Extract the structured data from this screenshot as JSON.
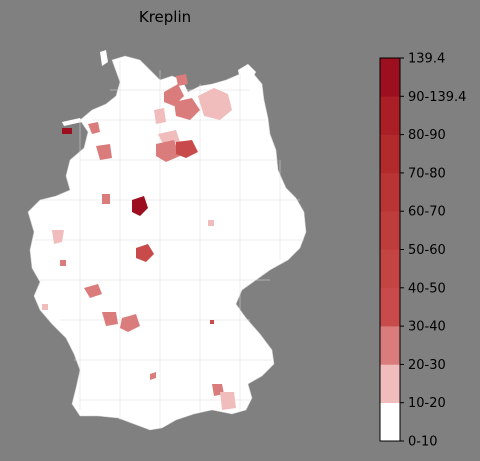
{
  "title": "Kreplin",
  "legend": {
    "max_label": "139.4",
    "bins": [
      {
        "label": "0-10",
        "color": "#ffffff"
      },
      {
        "label": "10-20",
        "color": "#f0bcbc"
      },
      {
        "label": "20-30",
        "color": "#da7c7c"
      },
      {
        "label": "30-40",
        "color": "#c94a4a"
      },
      {
        "label": "40-50",
        "color": "#c44444"
      },
      {
        "label": "50-60",
        "color": "#bf3c3c"
      },
      {
        "label": "60-70",
        "color": "#b93434"
      },
      {
        "label": "70-80",
        "color": "#b22a2c"
      },
      {
        "label": "80-90",
        "color": "#aa1e26"
      },
      {
        "label": "90-139.4",
        "color": "#9c0f1e"
      }
    ]
  },
  "colors": {
    "background": "#808080",
    "land": "#ffffff",
    "border": "#d8d8d8"
  }
}
